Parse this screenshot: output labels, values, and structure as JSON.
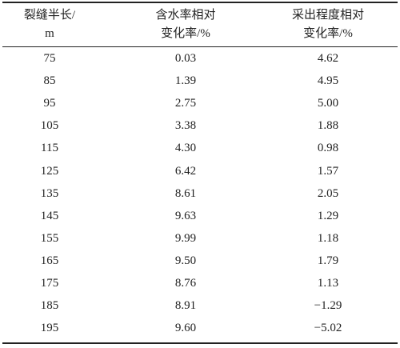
{
  "table": {
    "header": [
      [
        "裂缝半长/",
        "m"
      ],
      [
        "含水率相对",
        "变化率/%"
      ],
      [
        "采出程度相对",
        "变化率/%"
      ]
    ],
    "rows": [
      [
        "75",
        "0.03",
        "4.62"
      ],
      [
        "85",
        "1.39",
        "4.95"
      ],
      [
        "95",
        "2.75",
        "5.00"
      ],
      [
        "105",
        "3.38",
        "1.88"
      ],
      [
        "115",
        "4.30",
        "0.98"
      ],
      [
        "125",
        "6.42",
        "1.57"
      ],
      [
        "135",
        "8.61",
        "2.05"
      ],
      [
        "145",
        "9.63",
        "1.29"
      ],
      [
        "155",
        "9.99",
        "1.18"
      ],
      [
        "165",
        "9.50",
        "1.79"
      ],
      [
        "175",
        "8.76",
        "1.13"
      ],
      [
        "185",
        "8.91",
        "−1.29"
      ],
      [
        "195",
        "9.60",
        "−5.02"
      ]
    ]
  }
}
